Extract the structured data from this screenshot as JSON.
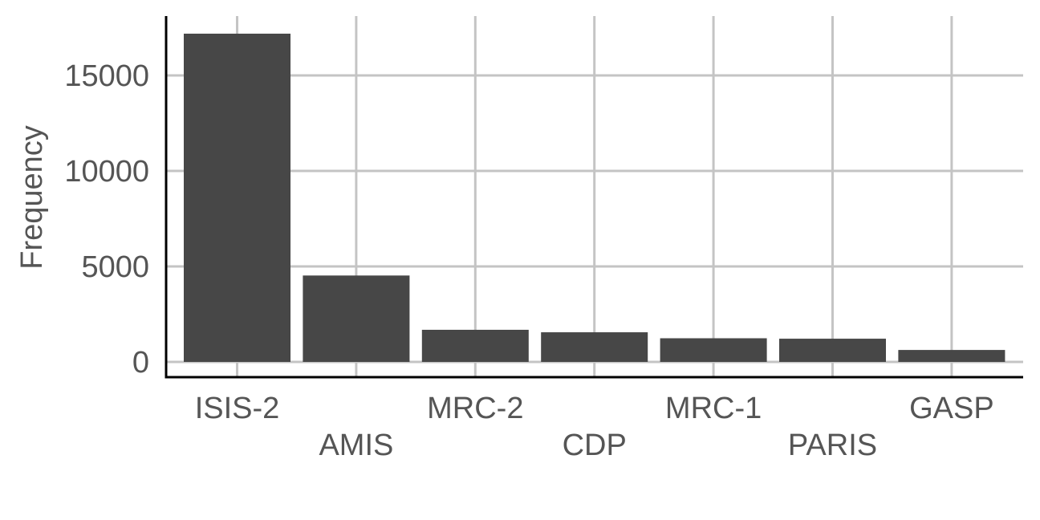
{
  "chart_data": {
    "type": "bar",
    "categories": [
      "ISIS-2",
      "AMIS",
      "MRC-2",
      "CDP",
      "MRC-1",
      "PARIS",
      "GASP"
    ],
    "values": [
      17187,
      4524,
      1682,
      1552,
      1239,
      1216,
      626
    ],
    "title": "",
    "xlabel": "",
    "ylabel": "Frequency",
    "ylim": [
      0,
      18000
    ],
    "yticks": [
      0,
      5000,
      10000,
      15000
    ],
    "ytick_labels": [
      "0",
      "5000",
      "10000",
      "15000"
    ],
    "grid": true,
    "legend": "none",
    "colors": {
      "bar": "#474747",
      "grid": "#c4c4c4",
      "axis": "#000000",
      "text": "#555555"
    }
  }
}
